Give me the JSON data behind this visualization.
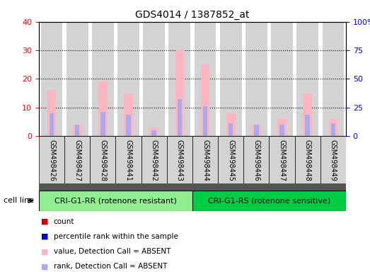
{
  "title": "GDS4014 / 1387852_at",
  "samples": [
    "GSM498426",
    "GSM498427",
    "GSM498428",
    "GSM498441",
    "GSM498442",
    "GSM498443",
    "GSM498444",
    "GSM498445",
    "GSM498446",
    "GSM498447",
    "GSM498448",
    "GSM498449"
  ],
  "value_absent": [
    16,
    4,
    19,
    15,
    3,
    30,
    25,
    8,
    4,
    6,
    15,
    6
  ],
  "rank_absent": [
    8,
    4,
    8.5,
    7.5,
    2,
    13,
    10.5,
    4.5,
    4,
    4,
    7.5,
    4.5
  ],
  "group1_label": "CRI-G1-RR (rotenone resistant)",
  "group2_label": "CRI-G1-RS (rotenone sensitive)",
  "group1_color": "#90ee90",
  "group2_color": "#00cc44",
  "bar_bg_color": "#d3d3d3",
  "value_absent_color": "#ffb6c1",
  "rank_absent_color": "#aaaaee",
  "count_color": "#cc0000",
  "percentile_color": "#0000cc",
  "ylim_left": [
    0,
    40
  ],
  "ylim_right": [
    0,
    100
  ],
  "yticks_left": [
    0,
    10,
    20,
    30,
    40
  ],
  "ytick_labels_right": [
    "0",
    "25",
    "50",
    "75",
    "100%"
  ],
  "cell_line_label": "cell line",
  "legend_entries": [
    {
      "label": "count",
      "color": "#cc0000"
    },
    {
      "label": "percentile rank within the sample",
      "color": "#0000cc"
    },
    {
      "label": "value, Detection Call = ABSENT",
      "color": "#ffb6c1"
    },
    {
      "label": "rank, Detection Call = ABSENT",
      "color": "#aaaaee"
    }
  ],
  "background_color": "#ffffff",
  "separator_color": "#555555",
  "label_box_color": "#d3d3d3"
}
